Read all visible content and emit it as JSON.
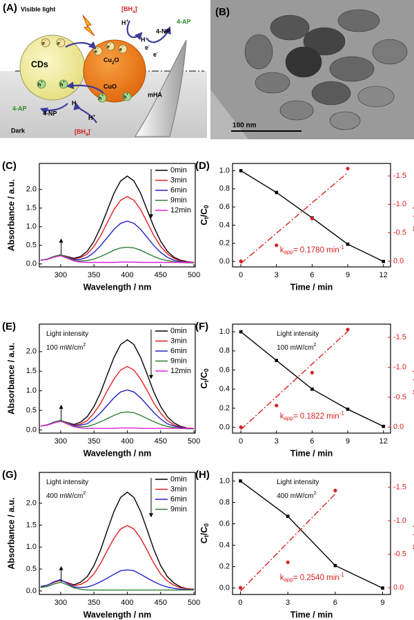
{
  "panel_a": {
    "label": "(A)",
    "light": "Visible light",
    "dark": "Dark",
    "cds": "CDs",
    "cu2o": [
      {
        "text": "Cu"
      },
      {
        "text": "2",
        "shift": "sub"
      },
      {
        "text": "O"
      }
    ],
    "cuo": "CuO",
    "mha": "mHA",
    "ap": "4-AP",
    "np": "4-NP",
    "h": "H",
    "hplus": [
      {
        "text": "H"
      },
      {
        "text": "+",
        "shift": "sup"
      }
    ],
    "bh4": [
      {
        "text": "[BH"
      },
      {
        "text": "4",
        "shift": "sub"
      },
      {
        "text": "]"
      },
      {
        "text": "-",
        "shift": "sup"
      }
    ],
    "eminus": [
      {
        "text": "e"
      },
      {
        "text": "-",
        "shift": "sup"
      }
    ],
    "hole": [
      {
        "text": "h"
      },
      {
        "text": "+",
        "shift": "sup"
      }
    ]
  },
  "panel_b": {
    "label": "(B)",
    "scale_bar": "100 nm"
  },
  "chart_data": [
    {
      "type": "line",
      "panel": "(C)",
      "x_label": "Wavelength / nm",
      "y_label": "Absorbance / a.u.",
      "legend": "upper right",
      "xlim": [
        268,
        502
      ],
      "ylim": [
        -0.08,
        2.7
      ],
      "xticks": [
        300,
        350,
        400,
        450,
        500
      ],
      "yticks": [
        {
          "value": 0,
          "label": "0.0"
        },
        0.5,
        {
          "value": 1,
          "label": "1.0"
        },
        1.5,
        {
          "value": 2,
          "label": "2.0"
        }
      ],
      "x": [
        270,
        280,
        290,
        300,
        310,
        320,
        330,
        340,
        350,
        360,
        370,
        380,
        390,
        400,
        410,
        420,
        430,
        440,
        450,
        460,
        470,
        480,
        490,
        500
      ],
      "series": [
        {
          "name": "0min",
          "color": "#000000",
          "values": [
            0.1,
            0.13,
            0.2,
            0.24,
            0.2,
            0.15,
            0.2,
            0.34,
            0.61,
            0.99,
            1.44,
            1.9,
            2.23,
            2.36,
            2.23,
            1.9,
            1.44,
            0.99,
            0.61,
            0.34,
            0.18,
            0.1,
            0.06,
            0.04
          ]
        },
        {
          "name": "3min",
          "color": "#e31a1c",
          "values": [
            0.1,
            0.13,
            0.2,
            0.24,
            0.19,
            0.13,
            0.17,
            0.27,
            0.47,
            0.76,
            1.11,
            1.46,
            1.71,
            1.81,
            1.71,
            1.46,
            1.11,
            0.76,
            0.47,
            0.27,
            0.15,
            0.08,
            0.05,
            0.04
          ]
        },
        {
          "name": "6min",
          "color": "#2222c8",
          "values": [
            0.1,
            0.13,
            0.2,
            0.24,
            0.18,
            0.11,
            0.12,
            0.18,
            0.31,
            0.49,
            0.71,
            0.93,
            1.09,
            1.15,
            1.09,
            0.93,
            0.71,
            0.49,
            0.31,
            0.18,
            0.1,
            0.06,
            0.04,
            0.03
          ]
        },
        {
          "name": "9min",
          "color": "#2e7d32",
          "values": [
            0.1,
            0.13,
            0.2,
            0.25,
            0.17,
            0.09,
            0.08,
            0.09,
            0.13,
            0.2,
            0.28,
            0.37,
            0.43,
            0.45,
            0.43,
            0.37,
            0.28,
            0.2,
            0.13,
            0.09,
            0.06,
            0.04,
            0.03,
            0.03
          ]
        },
        {
          "name": "12min",
          "color": "#e020d8",
          "values": [
            0.1,
            0.12,
            0.18,
            0.22,
            0.15,
            0.08,
            0.05,
            0.04,
            0.04,
            0.04,
            0.04,
            0.04,
            0.05,
            0.05,
            0.05,
            0.04,
            0.04,
            0.04,
            0.04,
            0.04,
            0.04,
            0.04,
            0.04,
            0.04
          ]
        }
      ]
    },
    {
      "type": "line",
      "panel": "(D)",
      "x_label": "Time / min",
      "y_label": [
        {
          "text": "C"
        },
        {
          "text": "t",
          "shift": "sub"
        },
        {
          "text": "/C"
        },
        {
          "text": "0",
          "shift": "sub"
        }
      ],
      "y2_label": [
        {
          "text": "ln(C"
        },
        {
          "text": "t",
          "shift": "sub"
        },
        {
          "text": "/C"
        },
        {
          "text": "0",
          "shift": "sub"
        },
        {
          "text": ")"
        }
      ],
      "annotation": [
        {
          "text": "k"
        },
        {
          "text": "app",
          "shift": "sub"
        },
        {
          "text": "= 0.1780 min"
        },
        {
          "text": "-1",
          "shift": "sup"
        }
      ],
      "xlim": [
        -0.7,
        12.6
      ],
      "ylim": [
        -0.06,
        1.08
      ],
      "y2lim": [
        0.1,
        -1.72
      ],
      "xticks": [
        0,
        3,
        6,
        9,
        12
      ],
      "yticks": [
        {
          "value": 0,
          "label": "0.0"
        },
        0.2,
        0.4,
        0.6,
        0.8,
        {
          "value": 1,
          "label": "1.0"
        }
      ],
      "y2ticks": [
        {
          "value": 0,
          "label": "0.0"
        },
        -0.5,
        {
          "value": -1,
          "label": "-1.0"
        },
        -1.5
      ],
      "x": [
        0,
        3,
        6,
        9,
        12
      ],
      "series": [
        {
          "color": "#000000",
          "marker": "square",
          "values": [
            1.0,
            0.76,
            0.48,
            0.19,
            0.0
          ]
        },
        {
          "color": "#d62020",
          "axis": "y2",
          "marker": "circle",
          "line": false,
          "x": [
            0,
            3,
            6,
            9
          ],
          "values": [
            0.0,
            -0.28,
            -0.75,
            -1.63
          ]
        },
        {
          "color": "#d62020",
          "axis": "y2",
          "dash": "dash-dot",
          "x": [
            0,
            9
          ],
          "values": [
            0.04,
            -1.56
          ]
        }
      ]
    },
    {
      "type": "line",
      "panel": "(E)",
      "x_label": "Wavelength / nm",
      "y_label": "Absorbance / a.u.",
      "legend": "upper right",
      "notes": [
        [
          {
            "text": "Light intensity"
          }
        ],
        [
          {
            "text": "100 mW/cm"
          },
          {
            "text": "2",
            "shift": "sup"
          }
        ]
      ],
      "xlim": [
        268,
        502
      ],
      "ylim": [
        -0.08,
        2.7
      ],
      "xticks": [
        300,
        350,
        400,
        450,
        500
      ],
      "yticks": [
        {
          "value": 0,
          "label": "0.0"
        },
        0.5,
        {
          "value": 1,
          "label": "1.0"
        },
        1.5,
        {
          "value": 2,
          "label": "2.0"
        }
      ],
      "x": [
        270,
        280,
        290,
        300,
        310,
        320,
        330,
        340,
        350,
        360,
        370,
        380,
        390,
        400,
        410,
        420,
        430,
        440,
        450,
        460,
        470,
        480,
        490,
        500
      ],
      "series": [
        {
          "name": "0min",
          "color": "#000000",
          "values": [
            0.1,
            0.13,
            0.2,
            0.24,
            0.19,
            0.14,
            0.2,
            0.34,
            0.6,
            0.96,
            1.41,
            1.85,
            2.18,
            2.3,
            2.18,
            1.85,
            1.41,
            0.96,
            0.6,
            0.34,
            0.18,
            0.09,
            0.05,
            0.04
          ]
        },
        {
          "name": "3min",
          "color": "#e31a1c",
          "values": [
            0.1,
            0.13,
            0.2,
            0.24,
            0.19,
            0.12,
            0.15,
            0.24,
            0.43,
            0.68,
            1.0,
            1.3,
            1.53,
            1.62,
            1.53,
            1.3,
            1.0,
            0.68,
            0.43,
            0.24,
            0.13,
            0.07,
            0.05,
            0.04
          ]
        },
        {
          "name": "6min",
          "color": "#2222c8",
          "values": [
            0.1,
            0.13,
            0.2,
            0.24,
            0.18,
            0.11,
            0.12,
            0.16,
            0.28,
            0.44,
            0.63,
            0.82,
            0.97,
            1.02,
            0.97,
            0.82,
            0.63,
            0.44,
            0.28,
            0.16,
            0.1,
            0.06,
            0.04,
            0.03
          ]
        },
        {
          "name": "9min",
          "color": "#2e7d32",
          "values": [
            0.1,
            0.13,
            0.2,
            0.25,
            0.17,
            0.09,
            0.08,
            0.09,
            0.14,
            0.21,
            0.29,
            0.37,
            0.44,
            0.46,
            0.44,
            0.37,
            0.29,
            0.21,
            0.14,
            0.09,
            0.06,
            0.04,
            0.03,
            0.03
          ]
        },
        {
          "name": "12min",
          "color": "#e020d8",
          "values": [
            0.1,
            0.12,
            0.18,
            0.22,
            0.15,
            0.08,
            0.05,
            0.04,
            0.04,
            0.04,
            0.04,
            0.04,
            0.05,
            0.05,
            0.05,
            0.04,
            0.04,
            0.04,
            0.04,
            0.04,
            0.04,
            0.04,
            0.04,
            0.04
          ]
        }
      ]
    },
    {
      "type": "line",
      "panel": "(F)",
      "x_label": "Time / min",
      "y_label": [
        {
          "text": "C"
        },
        {
          "text": "t",
          "shift": "sub"
        },
        {
          "text": "/C"
        },
        {
          "text": "0",
          "shift": "sub"
        }
      ],
      "y2_label": [
        {
          "text": "ln(C"
        },
        {
          "text": "t",
          "shift": "sub"
        },
        {
          "text": "/C"
        },
        {
          "text": "0",
          "shift": "sub"
        },
        {
          "text": ")"
        }
      ],
      "notes": [
        [
          {
            "text": "Light intensity"
          }
        ],
        [
          {
            "text": "100 mW/cm"
          },
          {
            "text": "2",
            "shift": "sup"
          }
        ]
      ],
      "annotation": [
        {
          "text": "k"
        },
        {
          "text": "app",
          "shift": "sub"
        },
        {
          "text": "= 0.1822 min"
        },
        {
          "text": "-1",
          "shift": "sup"
        }
      ],
      "xlim": [
        -0.7,
        12.6
      ],
      "ylim": [
        -0.06,
        1.08
      ],
      "y2lim": [
        0.1,
        -1.72
      ],
      "xticks": [
        0,
        3,
        6,
        9,
        12
      ],
      "yticks": [
        {
          "value": 0,
          "label": "0.0"
        },
        0.2,
        0.4,
        0.6,
        0.8,
        {
          "value": 1,
          "label": "1.0"
        }
      ],
      "y2ticks": [
        {
          "value": 0,
          "label": "0.0"
        },
        -0.5,
        {
          "value": -1,
          "label": "-1.0"
        },
        -1.5
      ],
      "x": [
        0,
        3,
        6,
        9,
        12
      ],
      "series": [
        {
          "color": "#000000",
          "marker": "square",
          "values": [
            1.0,
            0.7,
            0.4,
            0.19,
            0.01
          ]
        },
        {
          "color": "#d62020",
          "axis": "y2",
          "marker": "circle",
          "line": false,
          "x": [
            0,
            3,
            6,
            9
          ],
          "values": [
            0.0,
            -0.36,
            -0.91,
            -1.63
          ]
        },
        {
          "color": "#d62020",
          "axis": "y2",
          "dash": "dash-dot",
          "x": [
            0,
            9
          ],
          "values": [
            0.04,
            -1.6
          ]
        }
      ]
    },
    {
      "type": "line",
      "panel": "(G)",
      "x_label": "Wavelength / nm",
      "y_label": "Absorbance / a.u.",
      "legend": "upper right",
      "notes": [
        [
          {
            "text": "Light intensity"
          }
        ],
        [
          {
            "text": "400 mW/cm"
          },
          {
            "text": "2",
            "shift": "sup"
          }
        ]
      ],
      "xlim": [
        268,
        502
      ],
      "ylim": [
        -0.08,
        2.7
      ],
      "xticks": [
        300,
        350,
        400,
        450,
        500
      ],
      "yticks": [
        {
          "value": 0,
          "label": "0.0"
        },
        0.5,
        {
          "value": 1,
          "label": "1.0"
        },
        1.5,
        {
          "value": 2,
          "label": "2.0"
        }
      ],
      "x": [
        270,
        280,
        290,
        300,
        310,
        320,
        330,
        340,
        350,
        360,
        370,
        380,
        390,
        400,
        410,
        420,
        430,
        440,
        450,
        460,
        470,
        480,
        490,
        500
      ],
      "series": [
        {
          "name": "0min",
          "color": "#000000",
          "values": [
            0.1,
            0.13,
            0.2,
            0.24,
            0.19,
            0.14,
            0.2,
            0.33,
            0.58,
            0.94,
            1.38,
            1.81,
            2.13,
            2.25,
            2.13,
            1.81,
            1.38,
            0.94,
            0.58,
            0.33,
            0.18,
            0.09,
            0.05,
            0.04
          ]
        },
        {
          "name": "3min",
          "color": "#e31a1c",
          "values": [
            0.1,
            0.13,
            0.2,
            0.24,
            0.19,
            0.12,
            0.15,
            0.23,
            0.39,
            0.63,
            0.92,
            1.2,
            1.41,
            1.49,
            1.41,
            1.2,
            0.92,
            0.63,
            0.39,
            0.23,
            0.13,
            0.07,
            0.05,
            0.04
          ]
        },
        {
          "name": "6min",
          "color": "#2222c8",
          "values": [
            0.1,
            0.13,
            0.21,
            0.26,
            0.17,
            0.09,
            0.08,
            0.09,
            0.14,
            0.21,
            0.29,
            0.38,
            0.46,
            0.48,
            0.46,
            0.38,
            0.29,
            0.21,
            0.14,
            0.09,
            0.06,
            0.04,
            0.03,
            0.03
          ]
        },
        {
          "name": "9min",
          "color": "#2e7d32",
          "values": [
            0.08,
            0.1,
            0.16,
            0.2,
            0.14,
            0.07,
            0.04,
            0.02,
            0.02,
            0.02,
            0.02,
            0.02,
            0.02,
            0.02,
            0.02,
            0.02,
            0.02,
            0.02,
            0.02,
            0.02,
            0.02,
            0.02,
            0.02,
            0.02
          ]
        }
      ]
    },
    {
      "type": "line",
      "panel": "(H)",
      "x_label": "Time / min",
      "y_label": [
        {
          "text": "C"
        },
        {
          "text": "t",
          "shift": "sub"
        },
        {
          "text": "/C"
        },
        {
          "text": "0",
          "shift": "sub"
        }
      ],
      "y2_label": [
        {
          "text": "ln(C"
        },
        {
          "text": "t",
          "shift": "sub"
        },
        {
          "text": "/C"
        },
        {
          "text": "0",
          "shift": "sub"
        },
        {
          "text": ")"
        }
      ],
      "notes": [
        [
          {
            "text": "Light intensity"
          }
        ],
        [
          {
            "text": "400 mW/cm"
          },
          {
            "text": "2",
            "shift": "sup"
          }
        ]
      ],
      "annotation": [
        {
          "text": "k"
        },
        {
          "text": "app",
          "shift": "sub"
        },
        {
          "text": "= 0.2540 min"
        },
        {
          "text": "-1",
          "shift": "sup"
        }
      ],
      "xlim": [
        -0.5,
        9.5
      ],
      "ylim": [
        -0.06,
        1.08
      ],
      "y2lim": [
        0.1,
        -1.72
      ],
      "xticks": [
        0,
        3,
        6,
        9
      ],
      "yticks": [
        {
          "value": 0,
          "label": "0.0"
        },
        0.2,
        0.4,
        0.6,
        0.8,
        {
          "value": 1,
          "label": "1.0"
        }
      ],
      "y2ticks": [
        {
          "value": 0,
          "label": "0.0"
        },
        -0.5,
        {
          "value": -1,
          "label": "-1.0"
        },
        -1.5
      ],
      "x": [
        0,
        3,
        6,
        9
      ],
      "series": [
        {
          "color": "#000000",
          "marker": "square",
          "values": [
            1.0,
            0.67,
            0.21,
            0.0
          ]
        },
        {
          "color": "#d62020",
          "axis": "y2",
          "marker": "circle",
          "line": false,
          "x": [
            0,
            3,
            6
          ],
          "values": [
            0.0,
            -0.38,
            -1.45
          ]
        },
        {
          "color": "#d62020",
          "axis": "y2",
          "dash": "dash-dot",
          "x": [
            0,
            6
          ],
          "values": [
            0.05,
            -1.4
          ]
        }
      ]
    }
  ]
}
